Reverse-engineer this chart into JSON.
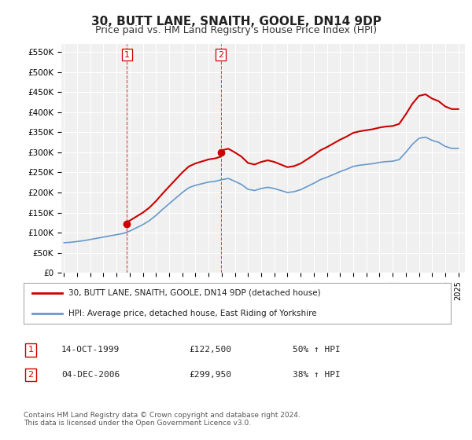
{
  "title": "30, BUTT LANE, SNAITH, GOOLE, DN14 9DP",
  "subtitle": "Price paid vs. HM Land Registry's House Price Index (HPI)",
  "title_fontsize": 11,
  "subtitle_fontsize": 9,
  "background_color": "#ffffff",
  "plot_bg_color": "#f0f0f0",
  "grid_color": "#ffffff",
  "ylim": [
    0,
    570000
  ],
  "yticks": [
    0,
    50000,
    100000,
    150000,
    200000,
    250000,
    300000,
    350000,
    400000,
    450000,
    500000,
    550000
  ],
  "ytick_labels": [
    "£0",
    "£50K",
    "£100K",
    "£150K",
    "£200K",
    "£250K",
    "£300K",
    "£350K",
    "£400K",
    "£450K",
    "£500K",
    "£550K"
  ],
  "purchase1": {
    "date_num": 1999.79,
    "price": 122500,
    "label": "1"
  },
  "purchase2": {
    "date_num": 2006.92,
    "price": 299950,
    "label": "2"
  },
  "legend_entry1": "30, BUTT LANE, SNAITH, GOOLE, DN14 9DP (detached house)",
  "legend_entry2": "HPI: Average price, detached house, East Riding of Yorkshire",
  "table_row1": [
    "1",
    "14-OCT-1999",
    "£122,500",
    "50% ↑ HPI"
  ],
  "table_row2": [
    "2",
    "04-DEC-2006",
    "£299,950",
    "38% ↑ HPI"
  ],
  "footnote": "Contains HM Land Registry data © Crown copyright and database right 2024.\nThis data is licensed under the Open Government Licence v3.0.",
  "line_color_red": "#cc0000",
  "line_color_blue": "#6699cc",
  "vline_color": "#cc0000"
}
